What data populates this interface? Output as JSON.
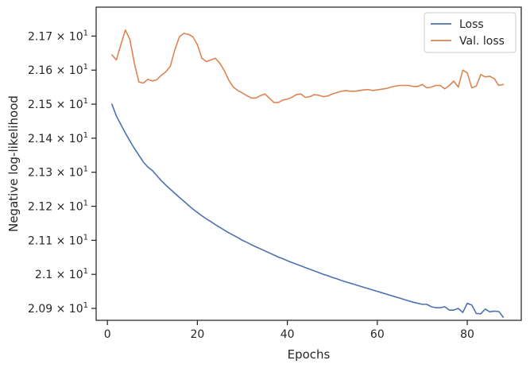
{
  "chart_data": {
    "type": "line",
    "xlabel": "Epochs",
    "ylabel": "Negative log-likelihood",
    "xlim": [
      -2.5,
      92
    ],
    "ylim": [
      20.865,
      21.785
    ],
    "xticks": [
      0,
      20,
      40,
      60,
      80
    ],
    "xtick_labels": [
      "0",
      "20",
      "40",
      "60",
      "80"
    ],
    "yticks": [
      20.9,
      21.0,
      21.1,
      21.2,
      21.3,
      21.4,
      21.5,
      21.6,
      21.7
    ],
    "ytick_mantissas": [
      "2.09",
      "2.1",
      "2.11",
      "2.12",
      "2.13",
      "2.14",
      "2.15",
      "2.16",
      "2.17"
    ],
    "ytick_multiplier": "× 10",
    "ytick_exponent": "1",
    "grid": false,
    "legend_position": "top-right",
    "series": [
      {
        "name": "Loss",
        "color": "#4c72b0",
        "x": [
          1,
          2,
          3,
          4,
          5,
          6,
          7,
          8,
          9,
          10,
          11,
          12,
          13,
          14,
          15,
          16,
          17,
          18,
          19,
          20,
          21,
          22,
          23,
          24,
          25,
          26,
          27,
          28,
          29,
          30,
          31,
          32,
          33,
          34,
          35,
          36,
          37,
          38,
          39,
          40,
          41,
          42,
          43,
          44,
          45,
          46,
          47,
          48,
          49,
          50,
          51,
          52,
          53,
          54,
          55,
          56,
          57,
          58,
          59,
          60,
          61,
          62,
          63,
          64,
          65,
          66,
          67,
          68,
          69,
          70,
          71,
          72,
          73,
          74,
          75,
          76,
          77,
          78,
          79,
          80,
          81,
          82,
          83,
          84,
          85,
          86,
          87,
          88
        ],
        "values": [
          21.5,
          21.465,
          21.44,
          21.415,
          21.392,
          21.37,
          21.35,
          21.33,
          21.315,
          21.305,
          21.29,
          21.275,
          21.262,
          21.25,
          21.238,
          21.226,
          21.215,
          21.203,
          21.192,
          21.182,
          21.172,
          21.163,
          21.155,
          21.146,
          21.138,
          21.13,
          21.122,
          21.115,
          21.108,
          21.1,
          21.094,
          21.087,
          21.081,
          21.075,
          21.069,
          21.063,
          21.057,
          21.051,
          21.046,
          21.04,
          21.035,
          21.03,
          21.025,
          21.02,
          21.015,
          21.01,
          21.005,
          21.0,
          20.996,
          20.991,
          20.987,
          20.982,
          20.978,
          20.974,
          20.97,
          20.966,
          20.962,
          20.958,
          20.954,
          20.95,
          20.946,
          20.942,
          20.938,
          20.934,
          20.93,
          20.926,
          20.922,
          20.918,
          20.915,
          20.912,
          20.912,
          20.905,
          20.902,
          20.902,
          20.905,
          20.895,
          20.895,
          20.9,
          20.888,
          20.915,
          20.91,
          20.885,
          20.884,
          20.898,
          20.89,
          20.892,
          20.891,
          20.874
        ]
      },
      {
        "name": "Val. loss",
        "color": "#dd8452",
        "x": [
          1,
          2,
          3,
          4,
          5,
          6,
          7,
          8,
          9,
          10,
          11,
          12,
          13,
          14,
          15,
          16,
          17,
          18,
          19,
          20,
          21,
          22,
          23,
          24,
          25,
          26,
          27,
          28,
          29,
          30,
          31,
          32,
          33,
          34,
          35,
          36,
          37,
          38,
          39,
          40,
          41,
          42,
          43,
          44,
          45,
          46,
          47,
          48,
          49,
          50,
          51,
          52,
          53,
          54,
          55,
          56,
          57,
          58,
          59,
          60,
          61,
          62,
          63,
          64,
          65,
          66,
          67,
          68,
          69,
          70,
          71,
          72,
          73,
          74,
          75,
          76,
          77,
          78,
          79,
          80,
          81,
          82,
          83,
          84,
          85,
          86,
          87,
          88
        ],
        "values": [
          21.645,
          21.63,
          21.675,
          21.718,
          21.69,
          21.62,
          21.565,
          21.562,
          21.573,
          21.568,
          21.572,
          21.585,
          21.595,
          21.612,
          21.66,
          21.698,
          21.708,
          21.705,
          21.698,
          21.675,
          21.635,
          21.625,
          21.63,
          21.635,
          21.62,
          21.598,
          21.57,
          21.55,
          21.54,
          21.533,
          21.525,
          21.518,
          21.518,
          21.525,
          21.53,
          21.518,
          21.505,
          21.505,
          21.512,
          21.515,
          21.52,
          21.528,
          21.53,
          21.52,
          21.522,
          21.528,
          21.526,
          21.522,
          21.524,
          21.53,
          21.534,
          21.538,
          21.54,
          21.538,
          21.538,
          21.54,
          21.542,
          21.543,
          21.54,
          21.542,
          21.544,
          21.546,
          21.55,
          21.553,
          21.555,
          21.555,
          21.555,
          21.552,
          21.552,
          21.558,
          21.548,
          21.55,
          21.555,
          21.555,
          21.545,
          21.555,
          21.568,
          21.55,
          21.6,
          21.592,
          21.548,
          21.553,
          21.587,
          21.58,
          21.582,
          21.575,
          21.555,
          21.558
        ]
      }
    ]
  }
}
